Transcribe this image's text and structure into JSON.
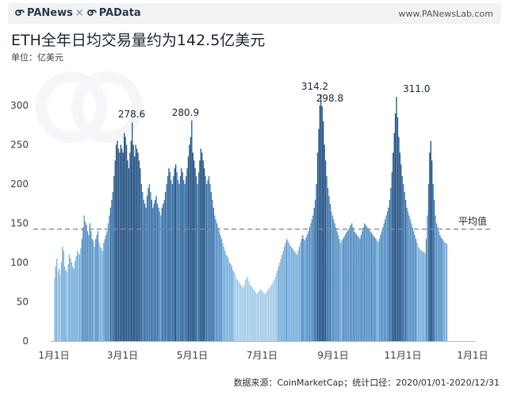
{
  "header": {
    "brand_left": "PANews",
    "brand_sep": "×",
    "brand_right": "PAData",
    "website": "www.PANewsLab.com"
  },
  "footer": {
    "source": "数据来源：CoinMarketCap；统计口径：2020/01/01-2020/12/31"
  },
  "chart_data": {
    "type": "bar",
    "title": "ETH全年日均交易量约为142.5亿美元",
    "subtitle": "单位：亿美元",
    "xlabel": "",
    "ylabel": "",
    "ylim": [
      0,
      330
    ],
    "y_ticks": [
      0,
      50,
      100,
      150,
      200,
      250,
      300
    ],
    "x_tick_labels": [
      {
        "label": "1月1日",
        "day": 0
      },
      {
        "label": "3月1日",
        "day": 60
      },
      {
        "label": "5月1日",
        "day": 121
      },
      {
        "label": "7月1日",
        "day": 182
      },
      {
        "label": "9月1日",
        "day": 244
      },
      {
        "label": "11月1日",
        "day": 305
      },
      {
        "label": "1月1日",
        "day": 366
      }
    ],
    "grid": false,
    "reference_line": {
      "label": "平均值",
      "value": 142.5
    },
    "annotations": [
      {
        "label": "278.6",
        "day": 68,
        "value": 278.6
      },
      {
        "label": "280.9",
        "day": 115,
        "value": 280.9
      },
      {
        "label": "314.2",
        "day": 235,
        "value": 314.2
      },
      {
        "label": "298.8",
        "day": 237,
        "value": 298.8
      },
      {
        "label": "311.0",
        "day": 317,
        "value": 311.0
      }
    ],
    "period": {
      "start": "2020-01-01",
      "end": "2020-12-31"
    },
    "values": [
      80,
      95,
      105,
      88,
      92,
      84,
      100,
      120,
      115,
      95,
      90,
      88,
      98,
      110,
      105,
      100,
      95,
      92,
      102,
      108,
      115,
      112,
      110,
      118,
      130,
      145,
      160,
      152,
      148,
      140,
      135,
      150,
      140,
      130,
      128,
      120,
      130,
      135,
      140,
      125,
      120,
      118,
      115,
      125,
      130,
      135,
      140,
      150,
      160,
      170,
      180,
      190,
      210,
      230,
      250,
      255,
      245,
      240,
      250,
      245,
      240,
      265,
      260,
      250,
      230,
      220,
      240,
      255,
      278.6,
      250,
      235,
      250,
      245,
      240,
      230,
      220,
      200,
      190,
      180,
      175,
      170,
      185,
      195,
      200,
      190,
      180,
      170,
      175,
      180,
      185,
      175,
      170,
      165,
      160,
      170,
      175,
      180,
      190,
      200,
      210,
      220,
      215,
      205,
      200,
      210,
      220,
      225,
      215,
      205,
      200,
      210,
      220,
      215,
      205,
      200,
      210,
      220,
      235,
      250,
      260,
      280.9,
      240,
      230,
      220,
      210,
      200,
      215,
      230,
      245,
      240,
      230,
      220,
      210,
      200,
      205,
      210,
      200,
      190,
      180,
      170,
      160,
      155,
      150,
      145,
      140,
      135,
      130,
      125,
      120,
      115,
      110,
      108,
      105,
      100,
      98,
      95,
      90,
      88,
      85,
      80,
      78,
      76,
      74,
      72,
      70,
      68,
      72,
      78,
      82,
      80,
      76,
      72,
      70,
      68,
      66,
      64,
      62,
      60,
      62,
      64,
      66,
      65,
      63,
      61,
      60,
      62,
      64,
      66,
      68,
      70,
      72,
      75,
      78,
      82,
      86,
      90,
      95,
      100,
      105,
      110,
      115,
      120,
      125,
      130,
      128,
      125,
      122,
      120,
      118,
      116,
      114,
      112,
      110,
      115,
      120,
      125,
      130,
      135,
      130,
      128,
      132,
      136,
      140,
      145,
      150,
      155,
      160,
      170,
      180,
      200,
      240,
      270,
      300,
      314.2,
      298.8,
      280,
      250,
      230,
      210,
      195,
      185,
      175,
      165,
      160,
      155,
      150,
      145,
      140,
      135,
      130,
      125,
      128,
      130,
      132,
      135,
      138,
      140,
      142,
      145,
      148,
      150,
      145,
      140,
      138,
      136,
      134,
      132,
      130,
      135,
      140,
      145,
      150,
      148,
      146,
      144,
      142,
      140,
      138,
      136,
      134,
      132,
      130,
      128,
      126,
      130,
      135,
      140,
      145,
      150,
      155,
      160,
      165,
      170,
      180,
      195,
      215,
      240,
      265,
      290,
      311.0,
      285,
      260,
      240,
      225,
      210,
      200,
      190,
      180,
      170,
      165,
      160,
      155,
      150,
      145,
      140,
      135,
      130,
      125,
      120,
      118,
      116,
      115,
      114,
      113,
      112,
      130,
      160,
      200,
      240,
      255,
      230,
      200,
      180,
      160,
      150,
      145,
      140,
      135,
      132,
      130,
      128,
      126,
      125,
      124
    ]
  }
}
